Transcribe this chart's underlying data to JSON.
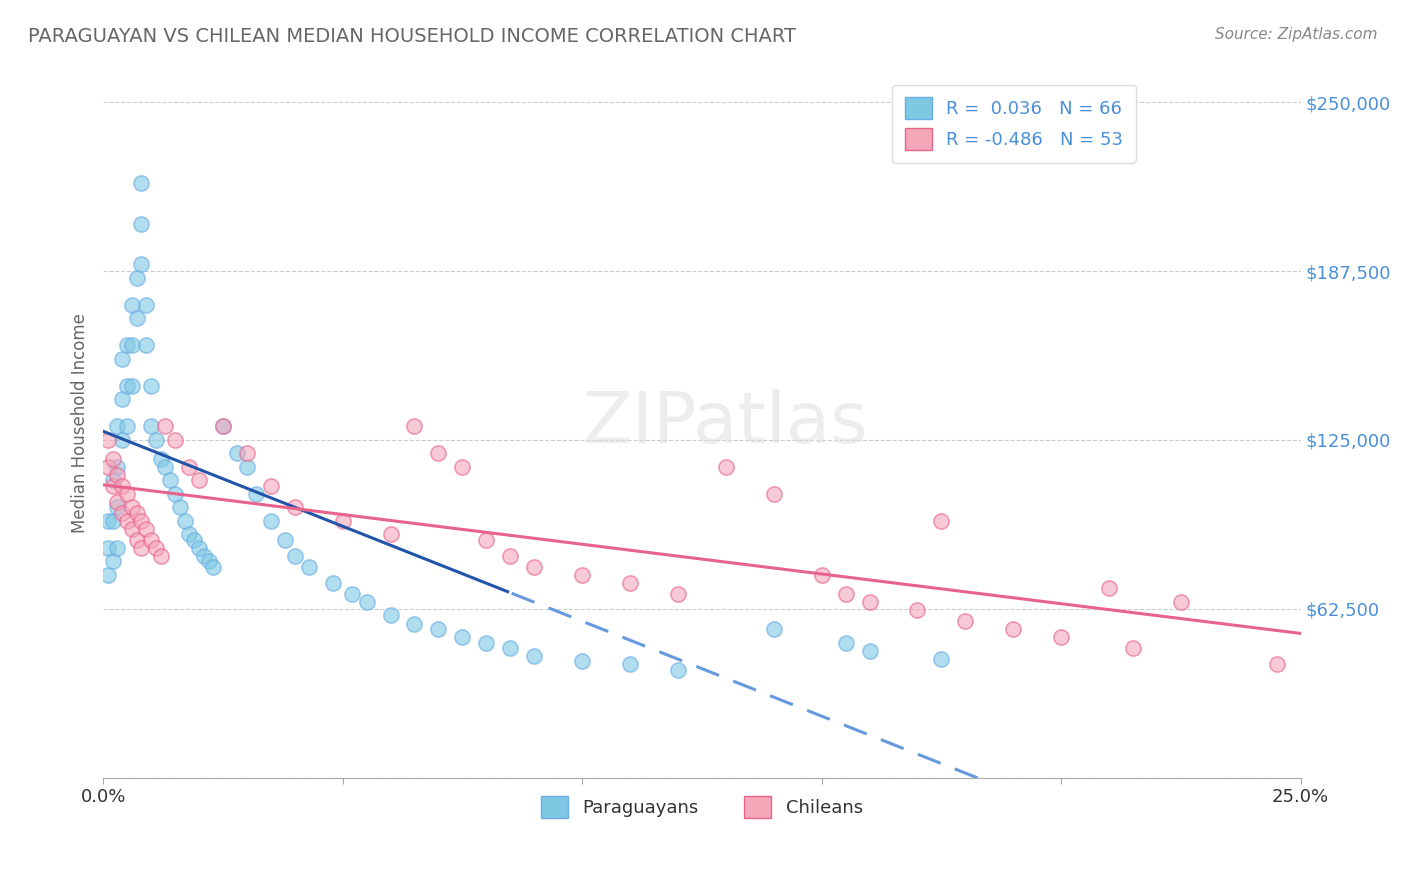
{
  "title": "PARAGUAYAN VS CHILEAN MEDIAN HOUSEHOLD INCOME CORRELATION CHART",
  "source": "Source: ZipAtlas.com",
  "ylabel": "Median Household Income",
  "xlim": [
    0.0,
    0.25
  ],
  "ylim": [
    0,
    262500
  ],
  "yticks": [
    0,
    62500,
    125000,
    187500,
    250000
  ],
  "ytick_labels": [
    "",
    "$62,500",
    "$125,000",
    "$187,500",
    "$250,000"
  ],
  "xticks": [
    0.0,
    0.05,
    0.1,
    0.15,
    0.2,
    0.25
  ],
  "xtick_labels": [
    "0.0%",
    "",
    "",
    "",
    "",
    "25.0%"
  ],
  "paraguayan_color": "#7EC8E3",
  "paraguayan_edge_color": "#6AADE4",
  "chilean_color": "#F4A7B9",
  "chilean_edge_color": "#E8638C",
  "paraguayan_line_color_solid": "#2255AA",
  "paraguayan_line_color_dashed": "#6699DD",
  "chilean_line_color": "#E8638C",
  "background_color": "#FFFFFF",
  "grid_color": "#CCCCCC",
  "title_color": "#666666",
  "label_color": "#4A90D9",
  "legend_r1": "R =  0.036",
  "legend_n1": "N = 66",
  "legend_r2": "R = -0.486",
  "legend_n2": "N = 53",
  "par_x": [
    0.001,
    0.001,
    0.001,
    0.002,
    0.002,
    0.002,
    0.003,
    0.003,
    0.003,
    0.003,
    0.004,
    0.004,
    0.004,
    0.005,
    0.005,
    0.005,
    0.006,
    0.006,
    0.006,
    0.007,
    0.007,
    0.008,
    0.008,
    0.008,
    0.009,
    0.009,
    0.01,
    0.01,
    0.011,
    0.012,
    0.013,
    0.014,
    0.015,
    0.016,
    0.017,
    0.018,
    0.019,
    0.02,
    0.021,
    0.022,
    0.023,
    0.025,
    0.028,
    0.03,
    0.032,
    0.035,
    0.038,
    0.04,
    0.043,
    0.048,
    0.052,
    0.055,
    0.06,
    0.065,
    0.07,
    0.075,
    0.08,
    0.085,
    0.09,
    0.1,
    0.11,
    0.12,
    0.14,
    0.155,
    0.16,
    0.175
  ],
  "par_y": [
    95000,
    85000,
    75000,
    110000,
    95000,
    80000,
    130000,
    115000,
    100000,
    85000,
    155000,
    140000,
    125000,
    160000,
    145000,
    130000,
    175000,
    160000,
    145000,
    185000,
    170000,
    220000,
    205000,
    190000,
    175000,
    160000,
    145000,
    130000,
    125000,
    118000,
    115000,
    110000,
    105000,
    100000,
    95000,
    90000,
    88000,
    85000,
    82000,
    80000,
    78000,
    130000,
    120000,
    115000,
    105000,
    95000,
    88000,
    82000,
    78000,
    72000,
    68000,
    65000,
    60000,
    57000,
    55000,
    52000,
    50000,
    48000,
    45000,
    43000,
    42000,
    40000,
    55000,
    50000,
    47000,
    44000
  ],
  "chi_x": [
    0.001,
    0.001,
    0.002,
    0.002,
    0.003,
    0.003,
    0.004,
    0.004,
    0.005,
    0.005,
    0.006,
    0.006,
    0.007,
    0.007,
    0.008,
    0.008,
    0.009,
    0.01,
    0.011,
    0.012,
    0.013,
    0.015,
    0.018,
    0.02,
    0.025,
    0.03,
    0.035,
    0.04,
    0.05,
    0.06,
    0.065,
    0.07,
    0.075,
    0.08,
    0.085,
    0.09,
    0.1,
    0.11,
    0.12,
    0.13,
    0.14,
    0.15,
    0.155,
    0.16,
    0.17,
    0.175,
    0.18,
    0.19,
    0.2,
    0.21,
    0.215,
    0.225,
    0.245
  ],
  "chi_y": [
    125000,
    115000,
    118000,
    108000,
    112000,
    102000,
    108000,
    98000,
    105000,
    95000,
    100000,
    92000,
    98000,
    88000,
    95000,
    85000,
    92000,
    88000,
    85000,
    82000,
    130000,
    125000,
    115000,
    110000,
    130000,
    120000,
    108000,
    100000,
    95000,
    90000,
    130000,
    120000,
    115000,
    88000,
    82000,
    78000,
    75000,
    72000,
    68000,
    115000,
    105000,
    75000,
    68000,
    65000,
    62000,
    95000,
    58000,
    55000,
    52000,
    70000,
    48000,
    65000,
    42000
  ]
}
